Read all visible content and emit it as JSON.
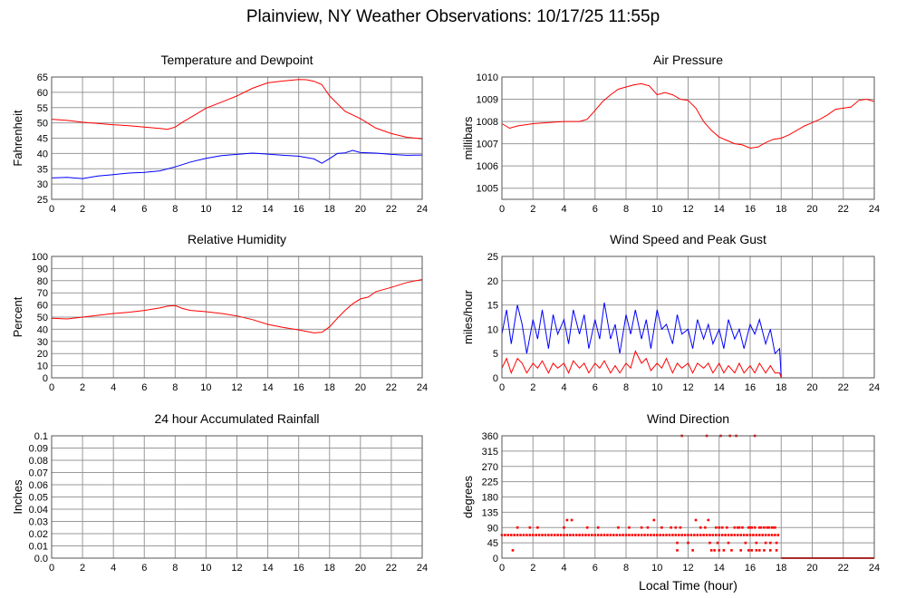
{
  "page": {
    "title": "Plainview, NY Weather Observations: 10/17/25 11:55p"
  },
  "colors": {
    "red": "#ff0000",
    "blue": "#0000ff",
    "grid": "#999999",
    "frame": "#555555"
  },
  "chart_data": [
    {
      "id": "temp",
      "type": "line",
      "title": "Temperature and Dewpoint",
      "xlabel": "",
      "ylabel": "Fahrenheit",
      "xlim": [
        0,
        24
      ],
      "ylim": [
        25,
        65
      ],
      "xticks": [
        0,
        2,
        4,
        6,
        8,
        10,
        12,
        14,
        16,
        18,
        20,
        22,
        24
      ],
      "yticks": [
        25,
        30,
        35,
        40,
        45,
        50,
        55,
        60,
        65
      ],
      "series": [
        {
          "color": "red",
          "x": [
            0,
            1,
            2,
            3,
            4,
            5,
            6,
            7,
            7.5,
            8,
            8.5,
            9,
            10,
            11,
            12,
            13,
            14,
            15,
            16,
            16.5,
            17,
            17.5,
            18,
            19,
            20,
            21,
            22,
            23,
            24
          ],
          "y": [
            51.2,
            50.8,
            50.2,
            49.8,
            49.4,
            49.1,
            48.6,
            48.2,
            47.9,
            48.6,
            50.3,
            51.8,
            54.8,
            56.8,
            58.8,
            61.3,
            63.1,
            63.7,
            64.2,
            64.1,
            63.6,
            62.5,
            58.8,
            53.8,
            51.4,
            48.3,
            46.5,
            45.3,
            44.8
          ]
        },
        {
          "color": "blue",
          "x": [
            0,
            1,
            2,
            3,
            4,
            5,
            6,
            7,
            8,
            9,
            10,
            11,
            12,
            13,
            14,
            15,
            16,
            17,
            17.5,
            18,
            18.5,
            19,
            19.5,
            20,
            21,
            22,
            23,
            24
          ],
          "y": [
            32,
            32.2,
            31.8,
            32.6,
            33.1,
            33.6,
            33.8,
            34.3,
            35.6,
            37.2,
            38.4,
            39.3,
            39.7,
            40.1,
            39.8,
            39.4,
            39.1,
            38.2,
            36.8,
            38.3,
            40.0,
            40.2,
            41.0,
            40.3,
            40.1,
            39.7,
            39.4,
            39.5
          ]
        }
      ]
    },
    {
      "id": "pres",
      "type": "line",
      "title": "Air Pressure",
      "xlabel": "",
      "ylabel": "millibars",
      "xlim": [
        0,
        24
      ],
      "ylim": [
        1004.5,
        1010
      ],
      "xticks": [
        0,
        2,
        4,
        6,
        8,
        10,
        12,
        14,
        16,
        18,
        20,
        22,
        24
      ],
      "yticks": [
        1005,
        1006,
        1007,
        1008,
        1009,
        1010
      ],
      "series": [
        {
          "color": "red",
          "x": [
            0,
            0.5,
            1,
            2,
            3,
            4,
            5,
            5.5,
            6,
            6.5,
            7,
            7.5,
            8,
            8.5,
            9,
            9.5,
            10,
            10.5,
            11,
            11.5,
            12,
            12.5,
            13,
            13.5,
            14,
            14.5,
            15,
            15.5,
            16,
            16.5,
            17,
            17.5,
            18,
            18.5,
            19,
            19.5,
            20,
            20.5,
            21,
            21.5,
            22,
            22.5,
            23,
            23.5,
            24
          ],
          "y": [
            1007.9,
            1007.7,
            1007.8,
            1007.9,
            1007.95,
            1008.0,
            1008.0,
            1008.1,
            1008.5,
            1008.9,
            1009.2,
            1009.45,
            1009.55,
            1009.65,
            1009.7,
            1009.6,
            1009.2,
            1009.3,
            1009.2,
            1009.0,
            1008.95,
            1008.6,
            1008.0,
            1007.6,
            1007.3,
            1007.15,
            1007.0,
            1006.95,
            1006.8,
            1006.85,
            1007.05,
            1007.2,
            1007.25,
            1007.4,
            1007.6,
            1007.8,
            1007.95,
            1008.1,
            1008.3,
            1008.55,
            1008.6,
            1008.65,
            1008.95,
            1009.0,
            1008.9
          ]
        }
      ]
    },
    {
      "id": "rh",
      "type": "line",
      "title": "Relative Humidity",
      "xlabel": "",
      "ylabel": "Percent",
      "xlim": [
        0,
        24
      ],
      "ylim": [
        0,
        100
      ],
      "xticks": [
        0,
        2,
        4,
        6,
        8,
        10,
        12,
        14,
        16,
        18,
        20,
        22,
        24
      ],
      "yticks": [
        0,
        10,
        20,
        30,
        40,
        50,
        60,
        70,
        80,
        90,
        100
      ],
      "series": [
        {
          "color": "red",
          "x": [
            0,
            1,
            2,
            3,
            4,
            5,
            6,
            7,
            7.5,
            8,
            8.5,
            9,
            10,
            11,
            12,
            13,
            14,
            15,
            16,
            17,
            17.5,
            18,
            18.5,
            19,
            19.5,
            20,
            20.5,
            21,
            22,
            23,
            24
          ],
          "y": [
            49,
            48.5,
            50,
            51.5,
            53,
            54,
            55.5,
            57.5,
            59,
            59.5,
            57,
            55.5,
            54.5,
            53,
            51,
            48,
            44,
            41.5,
            39.5,
            37,
            37.5,
            42,
            49,
            55.5,
            61,
            65,
            66.5,
            71,
            74.5,
            78.5,
            81
          ]
        }
      ]
    },
    {
      "id": "wind",
      "type": "line",
      "title": "Wind Speed and Peak Gust",
      "xlabel": "",
      "ylabel": "miles/hour",
      "xlim": [
        0,
        24
      ],
      "ylim": [
        0,
        25
      ],
      "xticks": [
        0,
        2,
        4,
        6,
        8,
        10,
        12,
        14,
        16,
        18,
        20,
        22,
        24
      ],
      "yticks": [
        0,
        5,
        10,
        15,
        20,
        25
      ],
      "series": [
        {
          "color": "blue",
          "x": [
            0,
            0.3,
            0.6,
            1,
            1.3,
            1.6,
            2,
            2.3,
            2.6,
            3,
            3.3,
            3.6,
            4,
            4.3,
            4.6,
            5,
            5.3,
            5.6,
            6,
            6.3,
            6.6,
            7,
            7.3,
            7.6,
            8,
            8.3,
            8.6,
            9,
            9.3,
            9.6,
            10,
            10.3,
            10.6,
            11,
            11.3,
            11.6,
            12,
            12.3,
            12.6,
            13,
            13.3,
            13.6,
            14,
            14.3,
            14.6,
            15,
            15.3,
            15.6,
            16,
            16.3,
            16.6,
            17,
            17.3,
            17.6,
            17.9,
            18,
            19,
            20,
            21,
            22,
            23,
            24
          ],
          "y": [
            9,
            14,
            7,
            15,
            11,
            5,
            12,
            8,
            14,
            6,
            13,
            9,
            12,
            7,
            14,
            9,
            13,
            6,
            12,
            8,
            15.5,
            8,
            11,
            5,
            13,
            9,
            14,
            8,
            12,
            6,
            14,
            10,
            11,
            7,
            13,
            9,
            10,
            6,
            12,
            8,
            11,
            7,
            10,
            6,
            12,
            8,
            10,
            6,
            11,
            9,
            12,
            7,
            10,
            5,
            6,
            0,
            0,
            0,
            0,
            0,
            0,
            0
          ]
        },
        {
          "color": "red",
          "x": [
            0,
            0.3,
            0.6,
            1,
            1.3,
            1.6,
            2,
            2.3,
            2.6,
            3,
            3.3,
            3.6,
            4,
            4.3,
            4.6,
            5,
            5.3,
            5.6,
            6,
            6.3,
            6.6,
            7,
            7.3,
            7.6,
            8,
            8.3,
            8.6,
            9,
            9.3,
            9.6,
            10,
            10.3,
            10.6,
            11,
            11.3,
            11.6,
            12,
            12.3,
            12.6,
            13,
            13.3,
            13.6,
            14,
            14.3,
            14.6,
            15,
            15.3,
            15.6,
            16,
            16.3,
            16.6,
            17,
            17.3,
            17.6,
            17.9,
            18,
            19,
            20,
            21,
            22,
            23,
            24
          ],
          "y": [
            2,
            4,
            1,
            4,
            3,
            1,
            3,
            2,
            3.5,
            1,
            3,
            2,
            3,
            1,
            3.5,
            2,
            3,
            1,
            3,
            2,
            3.5,
            1,
            2.5,
            1,
            3,
            2,
            5.5,
            3,
            4,
            1.5,
            3,
            2,
            4,
            1,
            3,
            2,
            3,
            1,
            3,
            2,
            3,
            1,
            3,
            1,
            2.5,
            1,
            3,
            1,
            2.5,
            1,
            3,
            1,
            2.5,
            1,
            1,
            0,
            0,
            0,
            0,
            0,
            0,
            0
          ]
        }
      ]
    },
    {
      "id": "rain",
      "type": "line",
      "title": "24 hour Accumulated Rainfall",
      "xlabel": "",
      "ylabel": "Inches",
      "xlim": [
        0,
        24
      ],
      "ylim": [
        0,
        0.1
      ],
      "xticks": [
        0,
        2,
        4,
        6,
        8,
        10,
        12,
        14,
        16,
        18,
        20,
        22,
        24
      ],
      "yticks": [
        "0.0",
        "0.01",
        "0.02",
        "0.03",
        "0.04",
        "0.05",
        "0.06",
        "0.07",
        "0.08",
        "0.09",
        "0.1"
      ],
      "series": [
        {
          "color": "red",
          "x": [
            0,
            24
          ],
          "y": [
            0,
            0
          ]
        }
      ]
    },
    {
      "id": "dir",
      "type": "scatter",
      "title": "Wind Direction",
      "xlabel": "Local Time (hour)",
      "ylabel": "degrees",
      "xlim": [
        0,
        24
      ],
      "ylim": [
        0,
        360
      ],
      "xticks": [
        0,
        2,
        4,
        6,
        8,
        10,
        12,
        14,
        16,
        18,
        20,
        22,
        24
      ],
      "yticks": [
        0,
        45,
        90,
        135,
        180,
        225,
        270,
        315,
        360
      ],
      "series": [
        {
          "color": "red",
          "line_x": [
            18,
            24
          ],
          "line_y": [
            0,
            0
          ],
          "x": [
            0,
            0.2,
            0.4,
            0.6,
            0.8,
            1,
            1.2,
            1.4,
            1.6,
            1.8,
            2,
            2.2,
            2.4,
            2.6,
            2.8,
            3,
            3.2,
            3.4,
            3.6,
            3.8,
            4,
            4.2,
            4.4,
            4.6,
            4.8,
            5,
            5.2,
            5.4,
            5.6,
            5.8,
            6,
            6.2,
            6.4,
            6.6,
            6.8,
            7,
            7.2,
            7.4,
            7.6,
            7.8,
            8,
            8.2,
            8.4,
            8.6,
            8.8,
            9,
            9.2,
            9.4,
            9.6,
            9.8,
            10,
            10.2,
            10.4,
            10.6,
            10.8,
            11,
            11.2,
            11.4,
            11.6,
            11.8,
            12,
            12.2,
            12.4,
            12.6,
            12.8,
            13,
            13.2,
            13.4,
            13.6,
            13.8,
            14,
            14.2,
            14.4,
            14.6,
            14.8,
            15,
            15.2,
            15.4,
            15.6,
            15.8,
            16,
            16.2,
            16.4,
            16.6,
            16.8,
            17,
            17.2,
            17.4,
            17.6,
            17.8,
            0.7,
            4.2,
            4.5,
            9.8,
            11.5,
            12.5,
            13.3,
            13.8,
            14.0,
            14.2,
            14.5,
            15.2,
            15.5,
            15.9,
            16.1,
            16.3,
            16.6,
            16.9,
            17.2,
            17.4,
            17.6,
            1.0,
            1.8,
            2.3,
            4.0,
            5.5,
            6.2,
            7.5,
            8.2,
            9.0,
            9.4,
            10.3,
            10.9,
            11.2,
            12.8,
            13.1,
            15.0,
            15.3,
            16.0,
            16.7,
            17.1,
            17.5,
            11.3,
            12.0,
            13.4,
            13.9,
            14.6,
            15.7,
            16.4,
            17.0,
            17.3,
            17.7,
            11.3,
            12.3,
            13.5,
            13.7,
            14.0,
            14.3,
            14.8,
            15.4,
            15.9,
            16.1,
            16.4,
            16.6,
            16.9,
            17.3,
            17.7,
            11.6,
            13.2,
            14.1,
            14.7,
            15.1,
            16.3
          ],
          "y": [
            68,
            68,
            68,
            68,
            68,
            68,
            68,
            68,
            68,
            68,
            68,
            68,
            68,
            68,
            68,
            68,
            68,
            68,
            68,
            68,
            68,
            68,
            68,
            68,
            68,
            68,
            68,
            68,
            68,
            68,
            68,
            68,
            68,
            68,
            68,
            68,
            68,
            68,
            68,
            68,
            68,
            68,
            68,
            68,
            68,
            68,
            68,
            68,
            68,
            68,
            68,
            68,
            68,
            68,
            68,
            68,
            68,
            68,
            68,
            68,
            68,
            68,
            68,
            68,
            68,
            68,
            68,
            68,
            68,
            68,
            68,
            68,
            68,
            68,
            68,
            68,
            68,
            68,
            68,
            68,
            68,
            68,
            68,
            68,
            68,
            68,
            68,
            68,
            68,
            68,
            23,
            112,
            112,
            112,
            90,
            112,
            112,
            90,
            90,
            90,
            90,
            90,
            90,
            90,
            90,
            90,
            90,
            90,
            90,
            90,
            90,
            90,
            90,
            90,
            90,
            90,
            90,
            90,
            90,
            90,
            90,
            90,
            90,
            90,
            90,
            90,
            90,
            90,
            90,
            90,
            90,
            90,
            45,
            45,
            45,
            45,
            45,
            45,
            45,
            45,
            45,
            45,
            23,
            23,
            23,
            23,
            23,
            23,
            23,
            23,
            23,
            23,
            23,
            23,
            23,
            23,
            23,
            360,
            360,
            360,
            360,
            360,
            360
          ]
        }
      ]
    }
  ]
}
